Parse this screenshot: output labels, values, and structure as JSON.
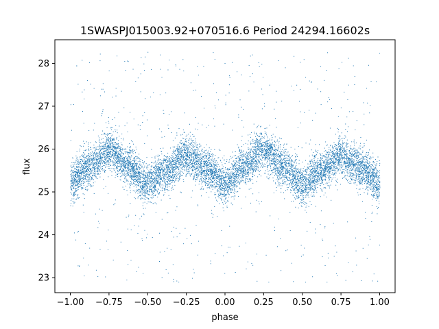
{
  "chart_data": {
    "type": "scatter",
    "title": "1SWASPJ015003.92+070516.6 Period 24294.16602s",
    "xlabel": "phase",
    "ylabel": "flux",
    "xlim": [
      -1.1,
      1.1
    ],
    "ylim": [
      22.65,
      28.55
    ],
    "x_ticks": [
      -1.0,
      -0.75,
      -0.5,
      -0.25,
      0.0,
      0.25,
      0.5,
      0.75,
      1.0
    ],
    "x_tick_labels": [
      "−1.00",
      "−0.75",
      "−0.50",
      "−0.25",
      "0.00",
      "0.25",
      "0.50",
      "0.75",
      "1.00"
    ],
    "y_ticks": [
      23,
      24,
      25,
      26,
      27,
      28
    ],
    "y_tick_labels": [
      "23",
      "24",
      "25",
      "26",
      "27",
      "28"
    ],
    "grid": false,
    "legend": "none",
    "point_color": "#1f77b4",
    "series": [
      {
        "phase_range": [
          -1.0,
          1.0
        ],
        "mean_flux_curve": [
          {
            "x": -1.0,
            "y": 25.25
          },
          {
            "x": -0.875,
            "y": 25.6
          },
          {
            "x": -0.75,
            "y": 26.0
          },
          {
            "x": -0.625,
            "y": 25.6
          },
          {
            "x": -0.5,
            "y": 25.2
          },
          {
            "x": -0.375,
            "y": 25.5
          },
          {
            "x": -0.25,
            "y": 25.85
          },
          {
            "x": -0.125,
            "y": 25.55
          },
          {
            "x": 0.0,
            "y": 25.2
          },
          {
            "x": 0.125,
            "y": 25.6
          },
          {
            "x": 0.25,
            "y": 26.0
          },
          {
            "x": 0.375,
            "y": 25.6
          },
          {
            "x": 0.5,
            "y": 25.2
          },
          {
            "x": 0.625,
            "y": 25.5
          },
          {
            "x": 0.75,
            "y": 25.85
          },
          {
            "x": 0.875,
            "y": 25.55
          },
          {
            "x": 1.0,
            "y": 25.2
          }
        ],
        "band_half_width": 0.3,
        "outlier_range": [
          22.9,
          28.3
        ]
      }
    ]
  }
}
